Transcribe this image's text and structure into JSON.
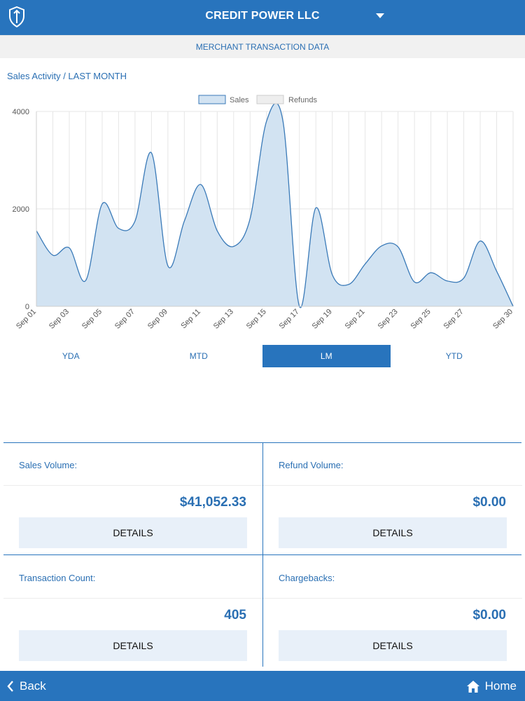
{
  "header": {
    "title": "CREDIT POWER LLC"
  },
  "subheader": {
    "title": "MERCHANT TRANSACTION DATA"
  },
  "section": {
    "title": "Sales Activity / LAST MONTH"
  },
  "tabs": [
    {
      "label": "YDA"
    },
    {
      "label": "MTD"
    },
    {
      "label": "LM"
    },
    {
      "label": "YTD"
    }
  ],
  "active_tab": "LM",
  "cards": [
    {
      "label": "Sales Volume:",
      "value": "$41,052.33",
      "button": "DETAILS"
    },
    {
      "label": "Refund Volume:",
      "value": "$0.00",
      "button": "DETAILS"
    },
    {
      "label": "Transaction Count:",
      "value": "405",
      "button": "DETAILS"
    },
    {
      "label": "Chargebacks:",
      "value": "$0.00",
      "button": "DETAILS"
    }
  ],
  "footer": {
    "back_label": "Back",
    "home_label": "Home"
  },
  "colors": {
    "brand": "#2874bd",
    "sales_fill": "#d2e3f2",
    "sales_line": "#3a7ab8",
    "refunds_fill": "#eeeeee"
  },
  "chart_data": {
    "type": "area",
    "title": "",
    "legend": {
      "placement": "top-center",
      "entries": [
        "Sales",
        "Refunds"
      ]
    },
    "x": [
      "Sep 01",
      "Sep 02",
      "Sep 03",
      "Sep 04",
      "Sep 05",
      "Sep 06",
      "Sep 07",
      "Sep 08",
      "Sep 09",
      "Sep 10",
      "Sep 11",
      "Sep 12",
      "Sep 13",
      "Sep 14",
      "Sep 15",
      "Sep 16",
      "Sep 17",
      "Sep 18",
      "Sep 19",
      "Sep 20",
      "Sep 21",
      "Sep 22",
      "Sep 23",
      "Sep 24",
      "Sep 25",
      "Sep 26",
      "Sep 27",
      "Sep 28",
      "Sep 29",
      "Sep 30"
    ],
    "x_tick_labels": [
      "Sep 01",
      "Sep 03",
      "Sep 05",
      "Sep 07",
      "Sep 09",
      "Sep 11",
      "Sep 13",
      "Sep 15",
      "Sep 17",
      "Sep 19",
      "Sep 21",
      "Sep 23",
      "Sep 25",
      "Sep 27",
      "Sep 30"
    ],
    "series": [
      {
        "name": "Sales",
        "values": [
          1550,
          1050,
          1200,
          530,
          2100,
          1600,
          1750,
          3150,
          830,
          1750,
          2500,
          1550,
          1230,
          1800,
          3800,
          3800,
          0,
          2020,
          650,
          450,
          870,
          1240,
          1220,
          500,
          690,
          520,
          580,
          1340,
          720,
          0
        ]
      },
      {
        "name": "Refunds",
        "values": [
          0,
          0,
          0,
          0,
          0,
          0,
          0,
          0,
          0,
          0,
          0,
          0,
          0,
          0,
          0,
          0,
          0,
          0,
          0,
          0,
          0,
          0,
          0,
          0,
          0,
          0,
          0,
          0,
          0,
          0
        ]
      }
    ],
    "y_ticks": [
      0,
      2000,
      4000
    ],
    "ylim": [
      0,
      4000
    ],
    "grid": true
  }
}
